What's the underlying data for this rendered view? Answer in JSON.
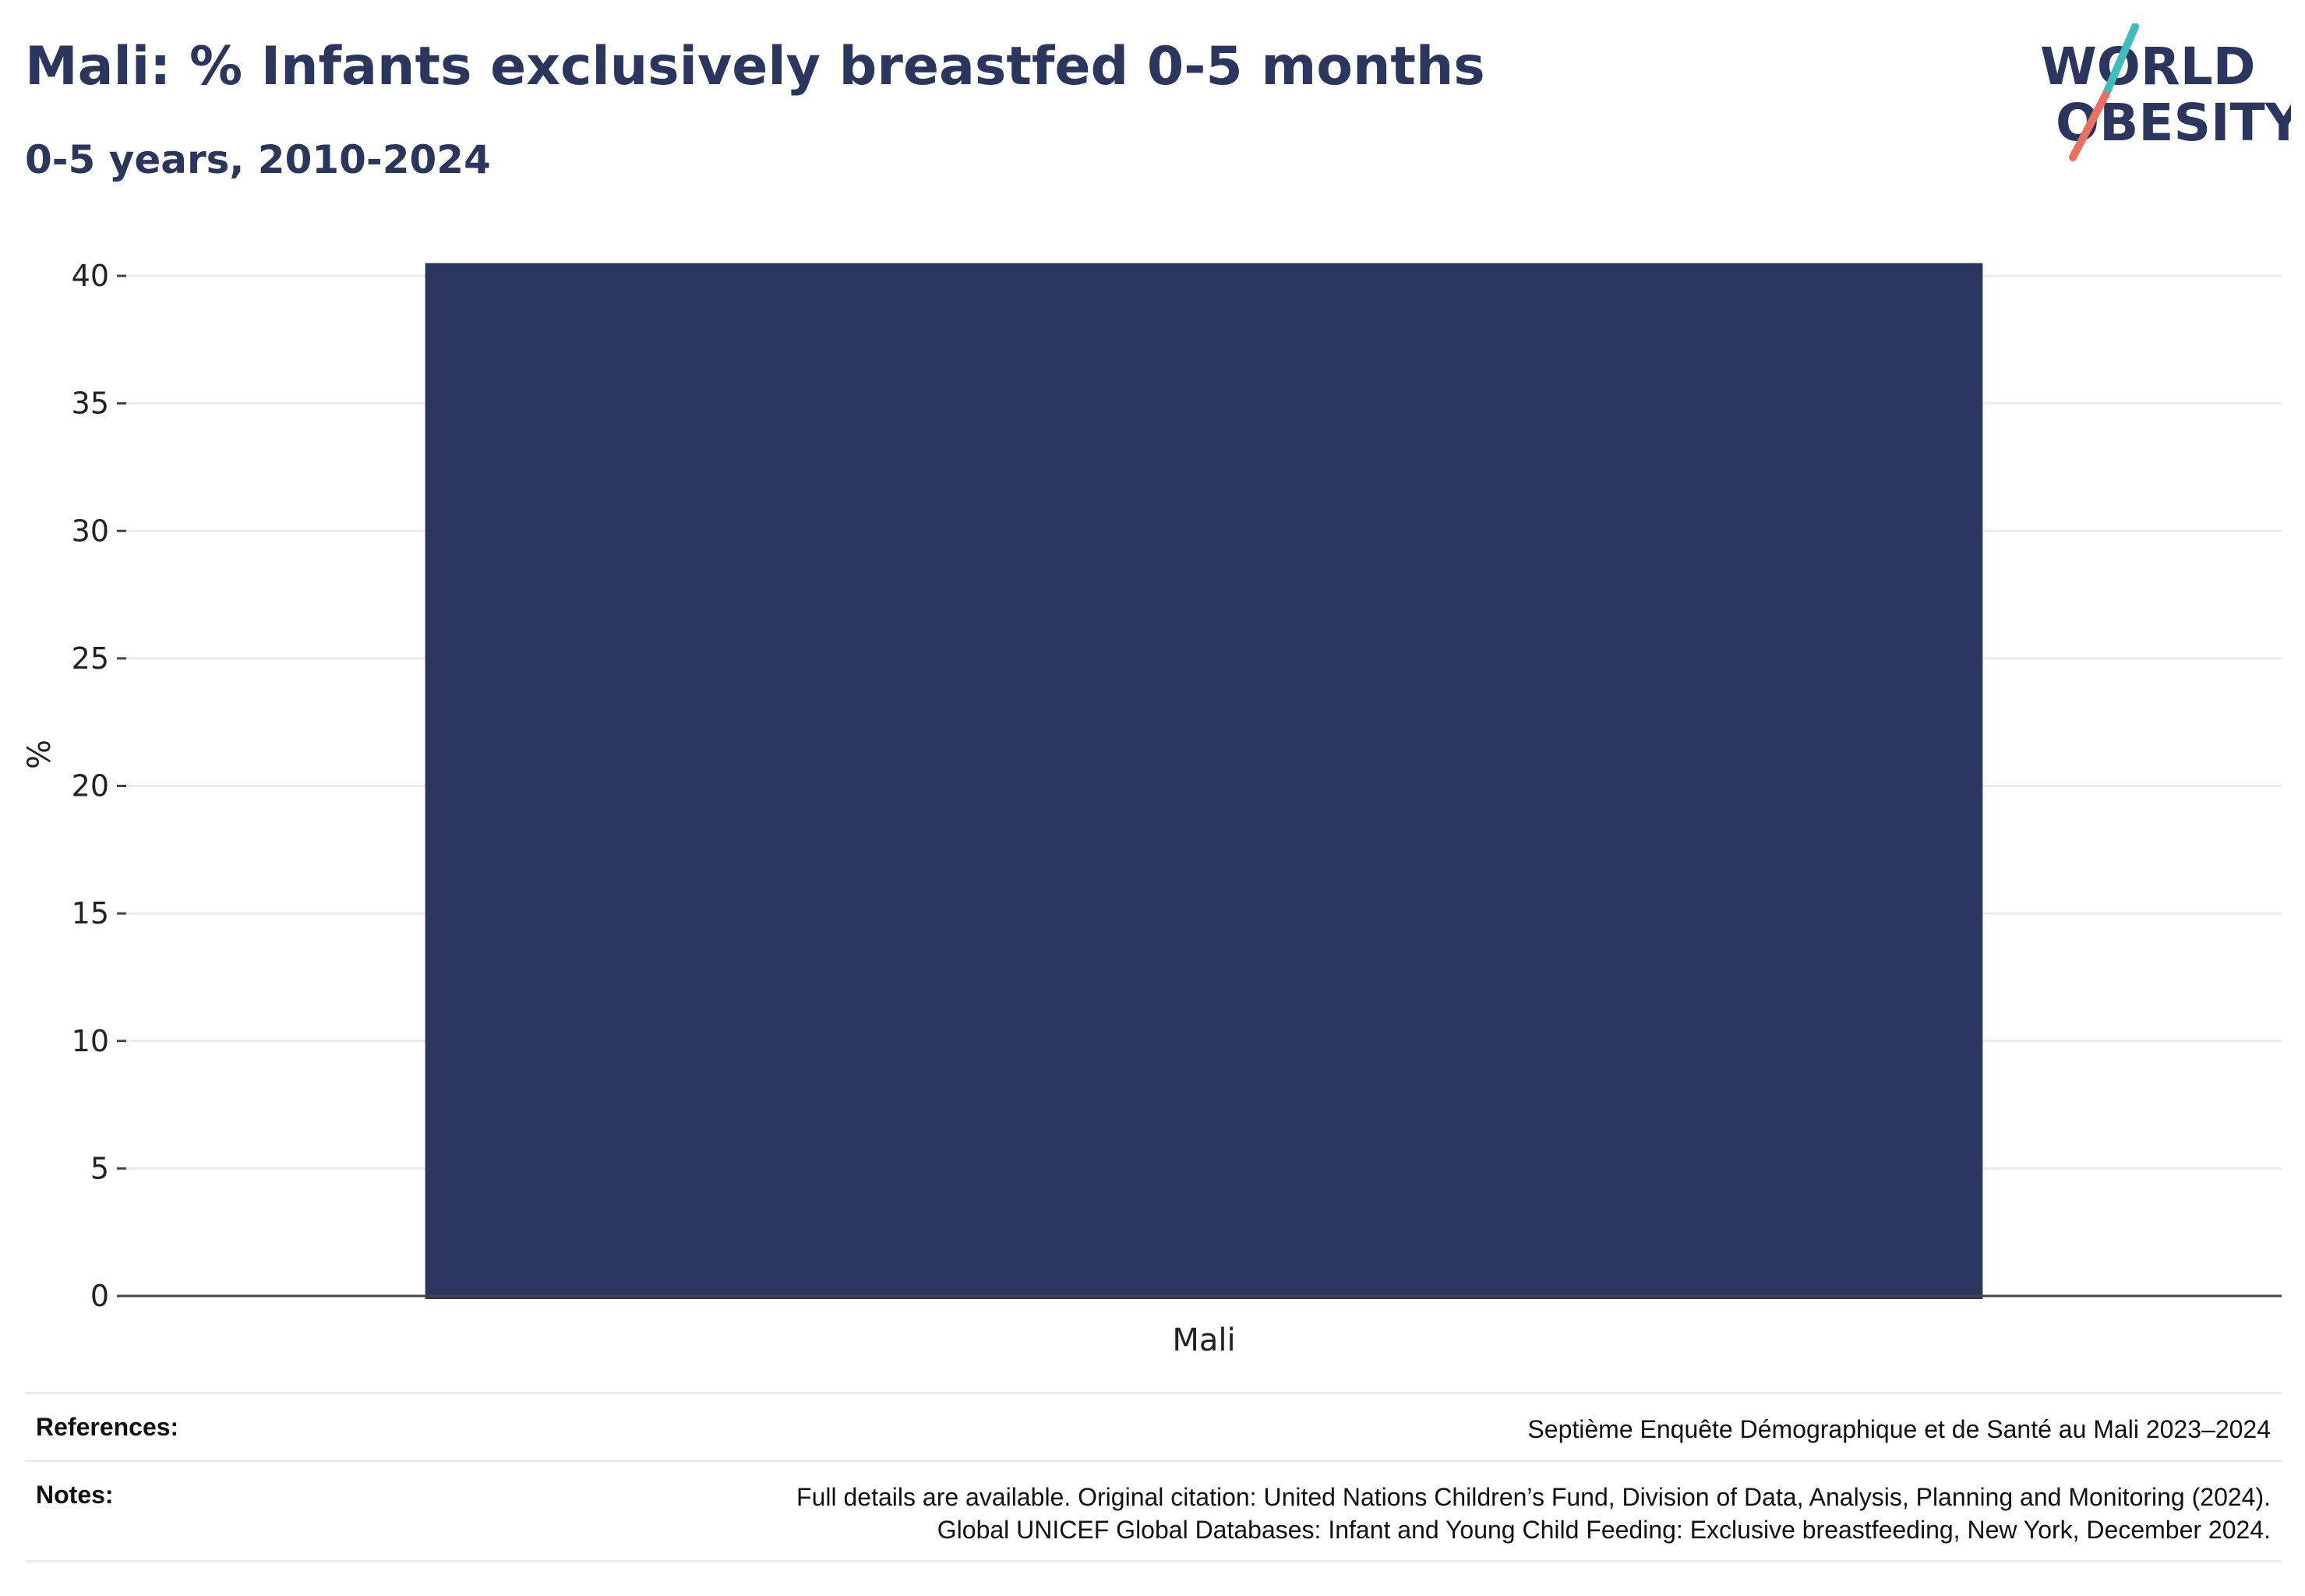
{
  "header": {
    "title": "Mali: % Infants exclusively breastfed 0-5 months",
    "subtitle": "0-5 years, 2010-2024"
  },
  "logo": {
    "line1": "WORLD",
    "line2": "OBESITY",
    "colors": {
      "text": "#2b365f",
      "slash_top": "#3dbdbd",
      "slash_bottom": "#e8705f"
    }
  },
  "chart_data": {
    "type": "bar",
    "categories": [
      "Mali"
    ],
    "values": [
      40.5
    ],
    "ylabel": "%",
    "xlabel": "",
    "ylim": [
      0,
      40
    ],
    "yticks": [
      0,
      5,
      10,
      15,
      20,
      25,
      30,
      35,
      40
    ],
    "grid": true,
    "bar_color": "#2b365f",
    "grid_color": "#ebebeb",
    "axis_color": "#444444"
  },
  "footer": {
    "references_label": "References:",
    "references_value": "Septième Enquête Démographique et de Santé au Mali 2023–2024",
    "notes_label": "Notes:",
    "notes_line1": "Full details are available. Original citation: United Nations Children’s Fund, Division of Data, Analysis, Planning and Monitoring (2024).",
    "notes_line2": "Global UNICEF Global Databases: Infant and Young Child Feeding: Exclusive breastfeeding, New York, December 2024."
  }
}
